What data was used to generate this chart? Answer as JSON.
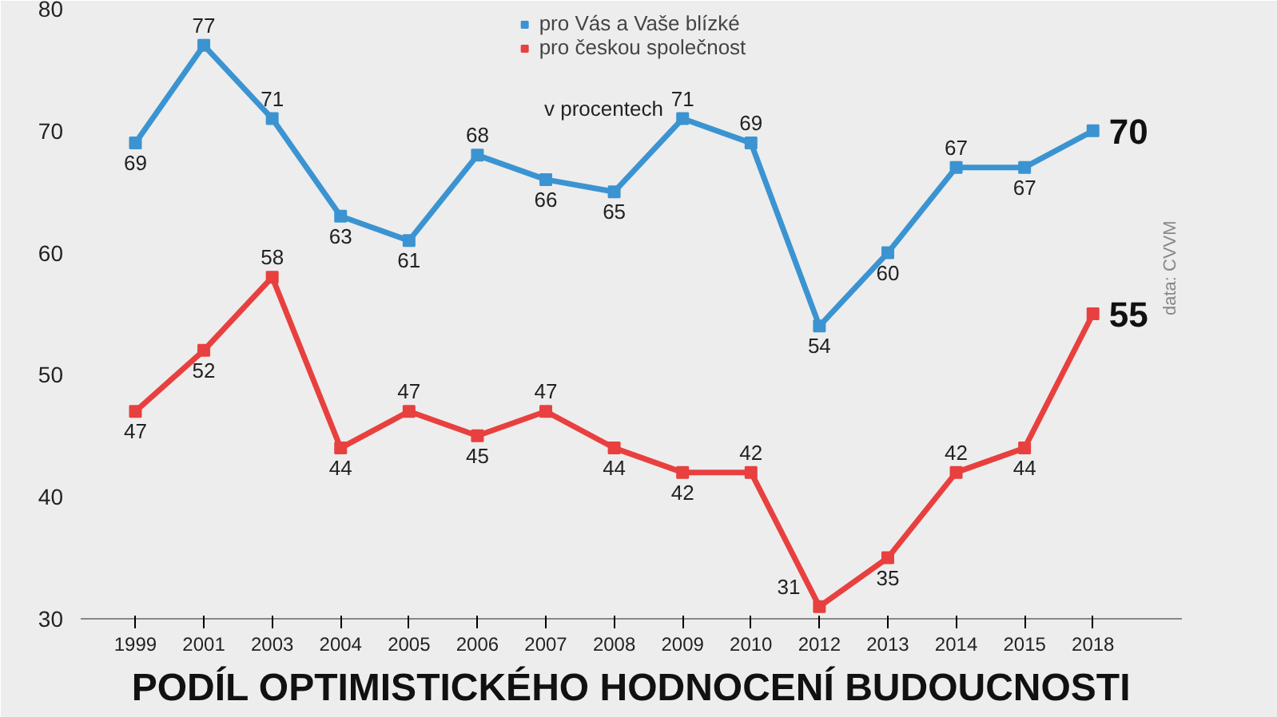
{
  "chart_data": {
    "type": "line",
    "title": "PODÍL OPTIMISTICKÉHO HODNOCENÍ BUDOUCNOSTI",
    "categories": [
      "1999",
      "2001",
      "2003",
      "2004",
      "2005",
      "2006",
      "2007",
      "2008",
      "2009",
      "2010",
      "2012",
      "2013",
      "2014",
      "2015",
      "2018"
    ],
    "series": [
      {
        "name": "pro Vás a Vaše blízké",
        "color": "#3b94d1",
        "values": [
          69,
          77,
          71,
          63,
          61,
          68,
          66,
          65,
          71,
          69,
          54,
          60,
          67,
          67,
          70
        ]
      },
      {
        "name": "pro českou společnost",
        "color": "#e8403f",
        "values": [
          47,
          52,
          58,
          44,
          47,
          45,
          47,
          44,
          42,
          42,
          31,
          35,
          42,
          44,
          55
        ]
      }
    ],
    "ylim": [
      30,
      80
    ],
    "yticks": [
      30,
      40,
      50,
      60,
      70,
      80
    ],
    "grid": false,
    "legend": "top",
    "marker": "square",
    "line_style": "solid",
    "data_labels": true,
    "annotations": [
      "v procentech",
      "data: CVVM"
    ]
  }
}
